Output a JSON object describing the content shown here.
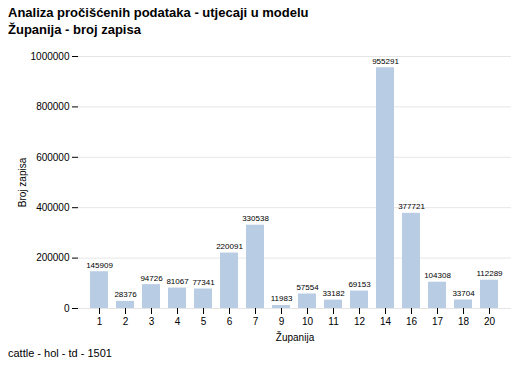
{
  "chart_data": {
    "type": "bar",
    "title": "Analiza pročišćenih podataka - utjecaji u modelu",
    "subtitle": "Županija - broj zapisa",
    "caption": "cattle - hol - td - 1501",
    "x_label": "Županija",
    "y_label": "Broj zapisa",
    "categories": [
      "1",
      "2",
      "3",
      "4",
      "5",
      "6",
      "7",
      "9",
      "10",
      "11",
      "12",
      "14",
      "16",
      "17",
      "18",
      "20"
    ],
    "values": [
      145909,
      28376,
      94726,
      81067,
      77341,
      220091,
      330538,
      11983,
      57554,
      33182,
      69153,
      955291,
      377721,
      104308,
      33704,
      112289
    ],
    "color": "#b8cce4",
    "ylim": [
      0,
      1000000
    ],
    "yticks": [
      0,
      200000,
      400000,
      600000,
      800000,
      1000000
    ],
    "grid": true,
    "data_labels": true
  }
}
